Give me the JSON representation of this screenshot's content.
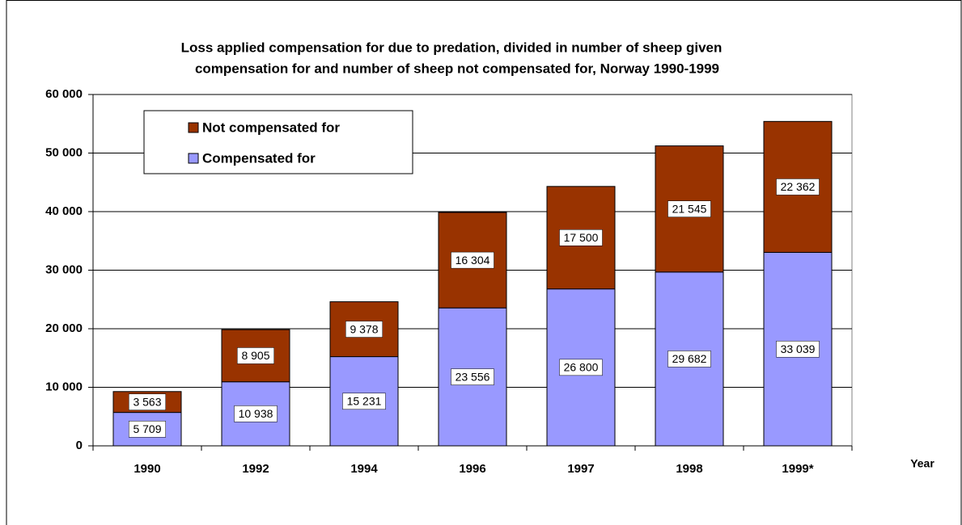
{
  "chart_data": {
    "type": "stacked_bar",
    "title": [
      "Loss applied compensation for due to predation, divided in number of sheep given",
      "compensation for and number of sheep not compensated for, Norway 1990-1999"
    ],
    "x_label": "Year",
    "categories": [
      "1990",
      "1992",
      "1994",
      "1996",
      "1997",
      "1998",
      "1999*"
    ],
    "series": [
      {
        "name": "Compensated for",
        "color": "#9999ff",
        "values": [
          5709,
          10938,
          15231,
          23556,
          26800,
          29682,
          33039
        ],
        "value_labels": [
          "5 709",
          "10 938",
          "15 231",
          "23 556",
          "26 800",
          "29 682",
          "33 039"
        ]
      },
      {
        "name": "Not compensated for",
        "color": "#993300",
        "values": [
          3563,
          8905,
          9378,
          16304,
          17500,
          21545,
          22362
        ],
        "value_labels": [
          "3 563",
          "8 905",
          "9 378",
          "16 304",
          "17 500",
          "21 545",
          "22 362"
        ]
      }
    ],
    "ylim": [
      0,
      60000
    ],
    "yticks": [
      0,
      {
        "value": 10000,
        "label": "10 000"
      },
      {
        "value": 20000,
        "label": "20 000"
      },
      {
        "value": 30000,
        "label": "30 000"
      },
      {
        "value": 40000,
        "label": "40 000"
      },
      {
        "value": 50000,
        "label": "50 000"
      },
      {
        "value": 60000,
        "label": "60 000"
      }
    ],
    "grid": true,
    "legend": "upper left"
  }
}
